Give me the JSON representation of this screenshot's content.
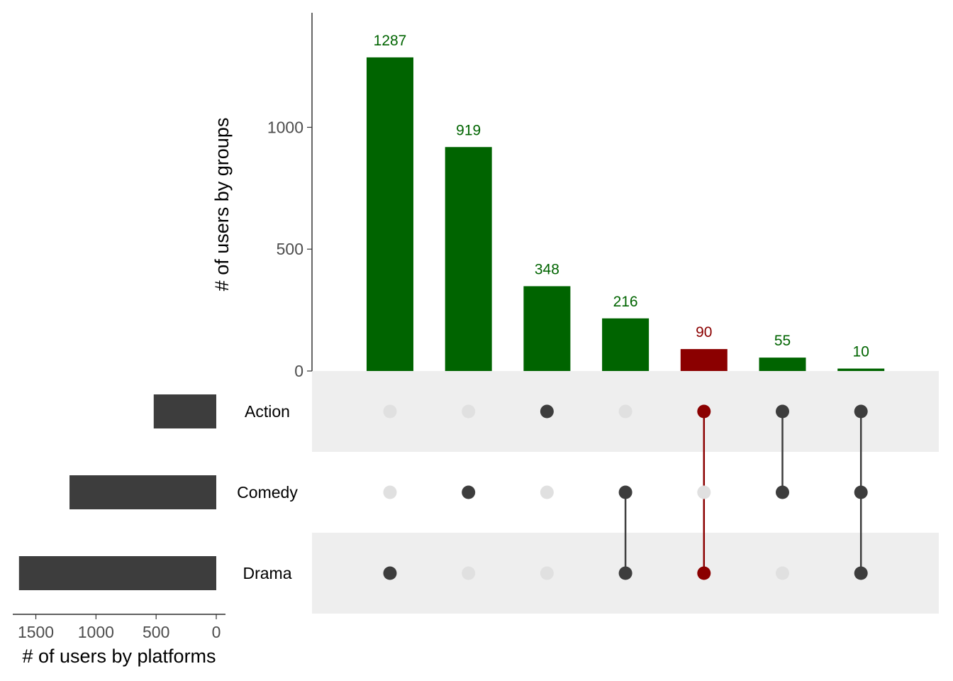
{
  "chart_data": {
    "type": "upset",
    "sets": [
      "Action",
      "Comedy",
      "Drama"
    ],
    "set_sizes": [
      520,
      1220,
      1640
    ],
    "set_size_axis": {
      "title": "# of users by platforms",
      "ticks": [
        1500,
        1000,
        500,
        0
      ],
      "tick_labels": [
        "1500",
        "1000",
        "500",
        "0"
      ],
      "xlim": [
        1680,
        0
      ]
    },
    "intersection_axis": {
      "title": "# of users by groups",
      "ticks": [
        0,
        500,
        1000
      ],
      "tick_labels": [
        "0",
        "500",
        "1000"
      ],
      "ylim": [
        0,
        1470
      ]
    },
    "intersections": [
      {
        "value": 1287,
        "label": "1287",
        "sets": [
          "Drama"
        ],
        "highlight": false
      },
      {
        "value": 919,
        "label": "919",
        "sets": [
          "Comedy"
        ],
        "highlight": false
      },
      {
        "value": 348,
        "label": "348",
        "sets": [
          "Action"
        ],
        "highlight": false
      },
      {
        "value": 216,
        "label": "216",
        "sets": [
          "Comedy",
          "Drama"
        ],
        "highlight": false
      },
      {
        "value": 90,
        "label": "90",
        "sets": [
          "Action",
          "Drama"
        ],
        "highlight": true
      },
      {
        "value": 55,
        "label": "55",
        "sets": [
          "Action",
          "Comedy"
        ],
        "highlight": false
      },
      {
        "value": 10,
        "label": "10",
        "sets": [
          "Action",
          "Comedy",
          "Drama"
        ],
        "highlight": false
      }
    ],
    "colors": {
      "bar": "#006400",
      "highlight": "#8b0000",
      "set_bar": "#3d3d3d",
      "dot_active": "#3d3d3d",
      "dot_inactive": "#e0e0e0",
      "stripe": "#eeeeee"
    }
  }
}
